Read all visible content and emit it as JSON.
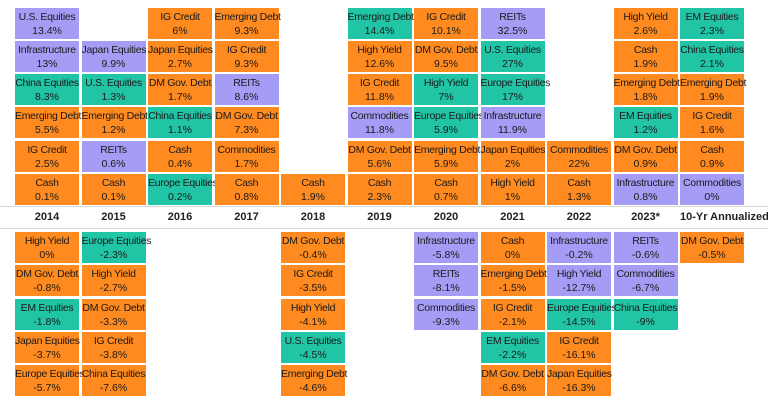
{
  "columns": [
    {
      "year": "2014",
      "gains": [
        {
          "name": "Cash",
          "value": "0.1%",
          "color": "#ff8a1f"
        },
        {
          "name": "IG Credit",
          "value": "2.5%",
          "color": "#ff8a1f"
        },
        {
          "name": "Emerging Debt",
          "value": "5.5%",
          "color": "#ff8a1f"
        },
        {
          "name": "China Equities",
          "value": "8.3%",
          "color": "#22c4a6"
        },
        {
          "name": "Infrastructure",
          "value": "13%",
          "color": "#a59df5"
        },
        {
          "name": "U.S. Equities",
          "value": "13.4%",
          "color": "#a59df5"
        }
      ],
      "losses": [
        {
          "name": "High Yield",
          "value": "0%",
          "color": "#ff8a1f"
        },
        {
          "name": "DM Gov. Debt",
          "value": "-0.8%",
          "color": "#ff8a1f"
        },
        {
          "name": "EM Equities",
          "value": "-1.8%",
          "color": "#22c4a6"
        },
        {
          "name": "Japan Equities",
          "value": "-3.7%",
          "color": "#ff8a1f"
        },
        {
          "name": "Europe Equities",
          "value": "-5.7%",
          "color": "#ff8a1f"
        }
      ]
    },
    {
      "year": "2015",
      "gains": [
        {
          "name": "Cash",
          "value": "0.1%",
          "color": "#ff8a1f"
        },
        {
          "name": "REITs",
          "value": "0.6%",
          "color": "#a59df5"
        },
        {
          "name": "Emerging Debt",
          "value": "1.2%",
          "color": "#ff8a1f"
        },
        {
          "name": "U.S. Equities",
          "value": "1.3%",
          "color": "#22c4a6"
        },
        {
          "name": "Japan Equities",
          "value": "9.9%",
          "color": "#a59df5"
        }
      ],
      "losses": [
        {
          "name": "Europe Equities",
          "value": "-2.3%",
          "color": "#22c4a6"
        },
        {
          "name": "High Yield",
          "value": "-2.7%",
          "color": "#ff8a1f"
        },
        {
          "name": "DM Gov. Debt",
          "value": "-3.3%",
          "color": "#ff8a1f"
        },
        {
          "name": "IG Credit",
          "value": "-3.8%",
          "color": "#ff8a1f"
        },
        {
          "name": "China Equities",
          "value": "-7.6%",
          "color": "#ff8a1f"
        }
      ]
    },
    {
      "year": "2016",
      "gains": [
        {
          "name": "Europe Equities",
          "value": "0.2%",
          "color": "#22c4a6"
        },
        {
          "name": "Cash",
          "value": "0.4%",
          "color": "#ff8a1f"
        },
        {
          "name": "China Equities",
          "value": "1.1%",
          "color": "#22c4a6"
        },
        {
          "name": "DM Gov. Debt",
          "value": "1.7%",
          "color": "#ff8a1f"
        },
        {
          "name": "Japan Equities",
          "value": "2.7%",
          "color": "#ff8a1f"
        },
        {
          "name": "IG Credit",
          "value": "6%",
          "color": "#ff8a1f"
        }
      ],
      "losses": []
    },
    {
      "year": "2017",
      "gains": [
        {
          "name": "Cash",
          "value": "0.8%",
          "color": "#ff8a1f"
        },
        {
          "name": "Commodities",
          "value": "1.7%",
          "color": "#ff8a1f"
        },
        {
          "name": "DM Gov. Debt",
          "value": "7.3%",
          "color": "#ff8a1f"
        },
        {
          "name": "REITs",
          "value": "8.6%",
          "color": "#a59df5"
        },
        {
          "name": "IG Credit",
          "value": "9.3%",
          "color": "#ff8a1f"
        },
        {
          "name": "Emerging Debt",
          "value": "9.3%",
          "color": "#ff8a1f"
        }
      ],
      "losses": []
    },
    {
      "year": "2018",
      "gains": [
        {
          "name": "Cash",
          "value": "1.9%",
          "color": "#ff8a1f"
        }
      ],
      "losses": [
        {
          "name": "DM Gov. Debt",
          "value": "-0.4%",
          "color": "#ff8a1f"
        },
        {
          "name": "IG Credit",
          "value": "-3.5%",
          "color": "#ff8a1f"
        },
        {
          "name": "High Yield",
          "value": "-4.1%",
          "color": "#ff8a1f"
        },
        {
          "name": "U.S. Equities",
          "value": "-4.5%",
          "color": "#22c4a6"
        },
        {
          "name": "Emerging Debt",
          "value": "-4.6%",
          "color": "#ff8a1f"
        }
      ]
    },
    {
      "year": "2019",
      "gains": [
        {
          "name": "Cash",
          "value": "2.3%",
          "color": "#ff8a1f"
        },
        {
          "name": "DM Gov. Debt",
          "value": "5.6%",
          "color": "#ff8a1f"
        },
        {
          "name": "Commodities",
          "value": "11.8%",
          "color": "#a59df5"
        },
        {
          "name": "IG Credit",
          "value": "11.8%",
          "color": "#ff8a1f"
        },
        {
          "name": "High Yield",
          "value": "12.6%",
          "color": "#ff8a1f"
        },
        {
          "name": "Emerging Debt",
          "value": "14.4%",
          "color": "#22c4a6"
        }
      ],
      "losses": []
    },
    {
      "year": "2020",
      "gains": [
        {
          "name": "Cash",
          "value": "0.7%",
          "color": "#ff8a1f"
        },
        {
          "name": "Emerging Debt",
          "value": "5.9%",
          "color": "#ff8a1f"
        },
        {
          "name": "Europe Equities",
          "value": "5.9%",
          "color": "#22c4a6"
        },
        {
          "name": "High Yield",
          "value": "7%",
          "color": "#22c4a6"
        },
        {
          "name": "DM Gov. Debt",
          "value": "9.5%",
          "color": "#ff8a1f"
        },
        {
          "name": "IG Credit",
          "value": "10.1%",
          "color": "#ff8a1f"
        }
      ],
      "losses": [
        {
          "name": "Infrastructure",
          "value": "-5.8%",
          "color": "#a59df5"
        },
        {
          "name": "REITs",
          "value": "-8.1%",
          "color": "#a59df5"
        },
        {
          "name": "Commodities",
          "value": "-9.3%",
          "color": "#a59df5"
        }
      ]
    },
    {
      "year": "2021",
      "gains": [
        {
          "name": "High Yield",
          "value": "1%",
          "color": "#ff8a1f"
        },
        {
          "name": "Japan Equities",
          "value": "2%",
          "color": "#ff8a1f"
        },
        {
          "name": "Infrastructure",
          "value": "11.9%",
          "color": "#a59df5"
        },
        {
          "name": "Europe Equities",
          "value": "17%",
          "color": "#22c4a6"
        },
        {
          "name": "U.S. Equities",
          "value": "27%",
          "color": "#22c4a6"
        },
        {
          "name": "REITs",
          "value": "32.5%",
          "color": "#a59df5"
        }
      ],
      "losses": [
        {
          "name": "Cash",
          "value": "0%",
          "color": "#ff8a1f"
        },
        {
          "name": "Emerging Debt",
          "value": "-1.5%",
          "color": "#ff8a1f"
        },
        {
          "name": "IG Credit",
          "value": "-2.1%",
          "color": "#ff8a1f"
        },
        {
          "name": "EM Equities",
          "value": "-2.2%",
          "color": "#22c4a6"
        },
        {
          "name": "DM Gov. Debt",
          "value": "-6.6%",
          "color": "#ff8a1f"
        }
      ]
    },
    {
      "year": "2022",
      "gains": [
        {
          "name": "Cash",
          "value": "1.3%",
          "color": "#ff8a1f"
        },
        {
          "name": "Commodities",
          "value": "22%",
          "color": "#ff8a1f"
        }
      ],
      "losses": [
        {
          "name": "Infrastructure",
          "value": "-0.2%",
          "color": "#a59df5"
        },
        {
          "name": "High Yield",
          "value": "-12.7%",
          "color": "#a59df5"
        },
        {
          "name": "Europe Equities",
          "value": "-14.5%",
          "color": "#22c4a6"
        },
        {
          "name": "IG Credit",
          "value": "-16.1%",
          "color": "#ff8a1f"
        },
        {
          "name": "Japan Equities",
          "value": "-16.3%",
          "color": "#ff8a1f"
        }
      ]
    },
    {
      "year": "2023*",
      "gains": [
        {
          "name": "Infrastructure",
          "value": "0.8%",
          "color": "#a59df5"
        },
        {
          "name": "DM Gov. Debt",
          "value": "0.9%",
          "color": "#ff8a1f"
        },
        {
          "name": "EM Equities",
          "value": "1.2%",
          "color": "#22c4a6"
        },
        {
          "name": "Emerging Debt",
          "value": "1.8%",
          "color": "#ff8a1f"
        },
        {
          "name": "Cash",
          "value": "1.9%",
          "color": "#ff8a1f"
        },
        {
          "name": "High Yield",
          "value": "2.6%",
          "color": "#ff8a1f"
        }
      ],
      "losses": [
        {
          "name": "REITs",
          "value": "-0.6%",
          "color": "#a59df5"
        },
        {
          "name": "Commodities",
          "value": "-6.7%",
          "color": "#a59df5"
        },
        {
          "name": "China Equities",
          "value": "-9%",
          "color": "#22c4a6"
        }
      ]
    },
    {
      "year": "10-Yr Annualized",
      "gains": [
        {
          "name": "Commodities",
          "value": "0%",
          "color": "#a59df5"
        },
        {
          "name": "Cash",
          "value": "0.9%",
          "color": "#ff8a1f"
        },
        {
          "name": "IG Credit",
          "value": "1.6%",
          "color": "#ff8a1f"
        },
        {
          "name": "Emerging Debt",
          "value": "1.9%",
          "color": "#ff8a1f"
        },
        {
          "name": "China Equities",
          "value": "2.1%",
          "color": "#22c4a6"
        },
        {
          "name": "EM Equities",
          "value": "2.3%",
          "color": "#22c4a6"
        }
      ],
      "losses": [
        {
          "name": "DM Gov. Debt",
          "value": "-0.5%",
          "color": "#ff8a1f"
        }
      ]
    }
  ]
}
